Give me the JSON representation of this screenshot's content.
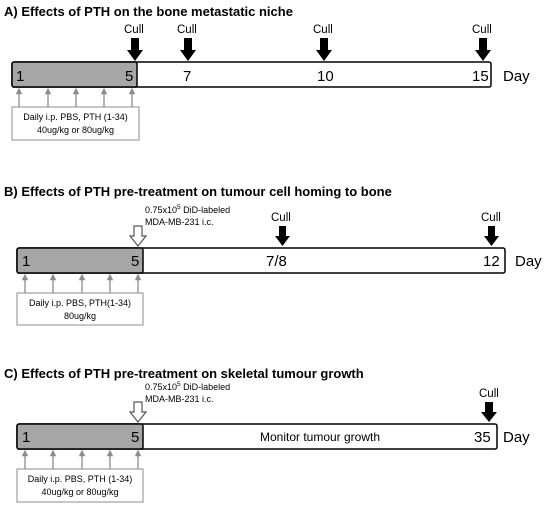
{
  "panels": [
    {
      "id": "A",
      "title": "A) Effects of PTH on the bone metastatic niche",
      "start_label": "1",
      "treatment_end_label": "5",
      "day_markers": [
        "7",
        "10",
        "15"
      ],
      "cull_label": "Cull",
      "day_label": "Day",
      "treatment_box_lines": [
        "Daily i.p. PBS, PTH (1-34)",
        "40ug/kg or 80ug/kg"
      ],
      "injection": null,
      "monitor_text": null
    },
    {
      "id": "B",
      "title": "B) Effects of PTH pre-treatment on tumour cell homing to bone",
      "start_label": "1",
      "treatment_end_label": "5",
      "day_markers": [
        "7/8",
        "12"
      ],
      "cull_label": "Cull",
      "day_label": "Day",
      "treatment_box_lines": [
        "Daily i.p. PBS, PTH(1-34)",
        "80ug/kg"
      ],
      "injection": {
        "line1_prefix": "0.75x10",
        "line1_sup": "5",
        "line1_suffix": " DiD-labeled",
        "line2": "MDA-MB-231 i.c."
      },
      "monitor_text": null
    },
    {
      "id": "C",
      "title": "C) Effects of PTH pre-treatment on skeletal tumour growth",
      "start_label": "1",
      "treatment_end_label": "5",
      "day_markers": [
        "35"
      ],
      "cull_label": "Cull",
      "day_label": "Day",
      "treatment_box_lines": [
        "Daily i.p. PBS, PTH (1-34)",
        "40ug/kg or 80ug/kg"
      ],
      "injection": {
        "line1_prefix": "0.75x10",
        "line1_sup": "5",
        "line1_suffix": " DiD-labeled",
        "line2": "MDA-MB-231 i.c."
      },
      "monitor_text": "Monitor tumour growth"
    }
  ],
  "colors": {
    "treatment_fill": "#a6a6a6",
    "timeline_fill": "#ffffff",
    "arrow_gray": "#8c8c8c",
    "cull_arrow": "#000000",
    "outline": "#000000"
  }
}
